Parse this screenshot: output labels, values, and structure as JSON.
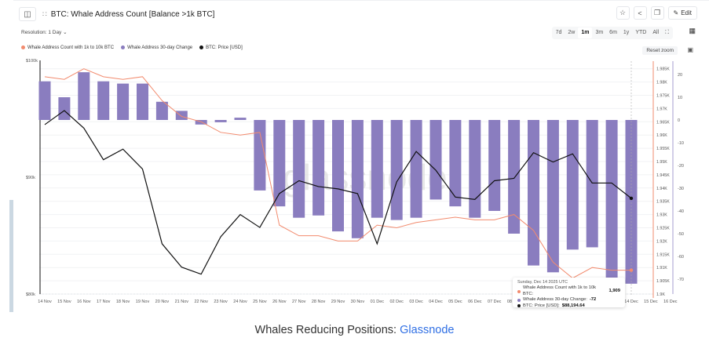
{
  "header": {
    "title": "BTC: Whale Address Count [Balance >1k BTC]",
    "edit_label": "Edit",
    "icons": [
      "sidebar-toggle-icon",
      "drag-handle-icon",
      "star-icon",
      "share-icon",
      "copy-icon",
      "pencil-icon"
    ]
  },
  "controls": {
    "resolution": "Resolution: 1 Day",
    "ranges": [
      "7d",
      "2w",
      "1m",
      "3m",
      "6m",
      "1y",
      "YTD",
      "All"
    ],
    "active_range": "1m",
    "reset_zoom": "Reset zoom"
  },
  "legend": [
    {
      "label": "Whale Address Count with 1k to 10k BTC",
      "color": "#f28b6e"
    },
    {
      "label": "Whale Address 30-day Change",
      "color": "#8a7dbf"
    },
    {
      "label": "BTC: Price [USD]",
      "color": "#111111"
    }
  ],
  "tooltip": {
    "date": "Sunday, Dec 14 2025 UTC",
    "rows": [
      {
        "label": "Whale Address Count with 1k to 10k BTC:",
        "value": "1,909",
        "color": "#f28b6e"
      },
      {
        "label": "Whale Address 30-day Change:",
        "value": "-72",
        "color": "#8a7dbf"
      },
      {
        "label": "BTC: Price [USD]:",
        "value": "$88,194.64",
        "color": "#111111"
      }
    ]
  },
  "caption": {
    "text": "Whales Reducing Positions: ",
    "link": "Glassnode"
  },
  "watermark": "glassnode",
  "chart_data": {
    "type": "bar",
    "title": "BTC: Whale Address Count [Balance >1k BTC]",
    "categories": [
      "14 Nov",
      "15 Nov",
      "16 Nov",
      "17 Nov",
      "18 Nov",
      "19 Nov",
      "20 Nov",
      "21 Nov",
      "22 Nov",
      "23 Nov",
      "24 Nov",
      "25 Nov",
      "26 Nov",
      "27 Nov",
      "28 Nov",
      "29 Nov",
      "30 Nov",
      "01 Dec",
      "02 Dec",
      "03 Dec",
      "04 Dec",
      "05 Dec",
      "06 Dec",
      "07 Dec",
      "08 Dec",
      "09 Dec",
      "10 Dec",
      "11 Dec",
      "12 Dec",
      "13 Dec",
      "14 Dec"
    ],
    "x_tick_labels": [
      "14 Nov",
      "15 Nov",
      "16 Nov",
      "17 Nov",
      "18 Nov",
      "19 Nov",
      "20 Nov",
      "21 Nov",
      "22 Nov",
      "23 Nov",
      "24 Nov",
      "25 Nov",
      "26 Nov",
      "27 Nov",
      "28 Nov",
      "29 Nov",
      "30 Nov",
      "01 Dec",
      "02 Dec",
      "03 Dec",
      "04 Dec",
      "05 Dec",
      "06 Dec",
      "07 Dec",
      "08 Dec",
      "09 Dec",
      "10 Dec",
      "11 Dec",
      "12 Dec",
      "13 Dec",
      "14 Dec",
      "15 Dec",
      "16 Dec"
    ],
    "series": [
      {
        "name": "Whale Address 30-day Change",
        "type": "bar",
        "axis": "right-outer",
        "color": "#8a7dbf",
        "values": [
          17,
          10,
          21,
          17,
          16,
          16,
          8,
          4,
          -2,
          -1,
          1,
          -31,
          -38,
          -43,
          -42,
          -49,
          -52,
          -43,
          -44,
          -43,
          -35,
          -38,
          -43,
          -40,
          -50,
          -64,
          -67,
          -57,
          -56,
          -72,
          -72
        ]
      },
      {
        "name": "Whale Address Count with 1k to 10k BTC",
        "type": "line",
        "axis": "right-inner",
        "color": "#f28b6e",
        "values": [
          1982,
          1981,
          1985,
          1982,
          1981,
          1982,
          1973,
          1967,
          1965,
          1961,
          1960,
          1961,
          1926,
          1922,
          1922,
          1920,
          1920,
          1926,
          1925,
          1927,
          1928,
          1929,
          1928,
          1928,
          1930,
          1924,
          1912,
          1906,
          1910,
          1909,
          1909
        ]
      },
      {
        "name": "BTC: Price [USD]",
        "type": "line",
        "axis": "left",
        "color": "#111111",
        "values": [
          94500,
          95700,
          94200,
          91500,
          92400,
          90700,
          84300,
          82300,
          81700,
          84900,
          86800,
          85700,
          88600,
          89700,
          89200,
          89000,
          88600,
          84300,
          89600,
          92200,
          90600,
          88300,
          88100,
          89700,
          89900,
          92100,
          91300,
          92000,
          89500,
          89500,
          88194.64
        ]
      }
    ],
    "axes": {
      "left": {
        "label": "Price [USD]",
        "ticks": [
          "$80k",
          "$90k",
          "$100k"
        ],
        "range": [
          80000,
          100000
        ]
      },
      "right_inner": {
        "ticks": [
          "1.9K",
          "1.905K",
          "1.91K",
          "1.915K",
          "1.92K",
          "1.925K",
          "1.93K",
          "1.935K",
          "1.94K",
          "1.945K",
          "1.95K",
          "1.955K",
          "1.96K",
          "1.965K",
          "1.97K",
          "1.975K",
          "1.98K",
          "1.985K"
        ],
        "range": [
          1900,
          1987
        ]
      },
      "right_outer": {
        "ticks": [
          "-70",
          "-60",
          "-50",
          "-40",
          "-30",
          "-20",
          "-10",
          "0",
          "10",
          "20"
        ],
        "range": [
          -76,
          24
        ]
      }
    },
    "grid": true,
    "legend_position": "top-left"
  }
}
